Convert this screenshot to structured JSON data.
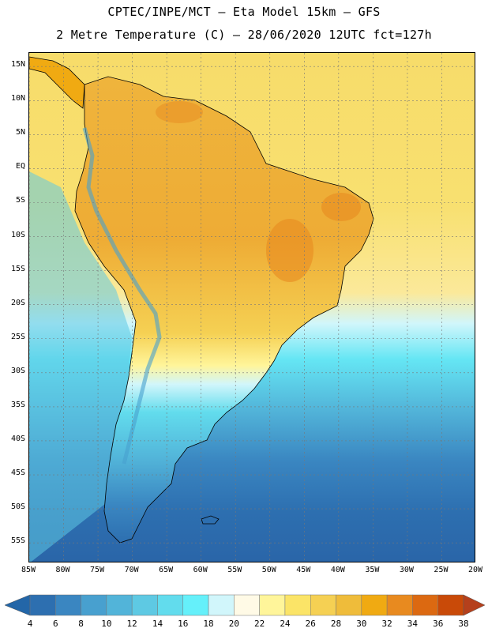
{
  "header": {
    "line1": "CPTEC/INPE/MCT –  Eta Model 15km – GFS",
    "line2": "2 Metre Temperature (C) – 28/06/2020 12UTC fct=127h"
  },
  "axes": {
    "lat_labels": [
      "15N",
      "10N",
      "5N",
      "EQ",
      "5S",
      "10S",
      "15S",
      "20S",
      "25S",
      "30S",
      "35S",
      "40S",
      "45S",
      "50S",
      "55S"
    ],
    "lat_values": [
      15,
      10,
      5,
      0,
      -5,
      -10,
      -15,
      -20,
      -25,
      -30,
      -35,
      -40,
      -45,
      -50,
      -55
    ],
    "lon_labels": [
      "85W",
      "80W",
      "75W",
      "70W",
      "65W",
      "60W",
      "55W",
      "50W",
      "45W",
      "40W",
      "35W",
      "30W",
      "25W",
      "20W"
    ],
    "lon_values": [
      -85,
      -80,
      -75,
      -70,
      -65,
      -60,
      -55,
      -50,
      -45,
      -40,
      -35,
      -30,
      -25,
      -20
    ],
    "lon_range": [
      -85,
      -20
    ],
    "lat_range": [
      -58,
      17
    ]
  },
  "colorbar": {
    "levels": [
      "4",
      "6",
      "8",
      "10",
      "12",
      "14",
      "16",
      "18",
      "20",
      "22",
      "24",
      "26",
      "28",
      "30",
      "32",
      "34",
      "36",
      "38"
    ],
    "colors": [
      "#2d6fb0",
      "#3a86c1",
      "#48a0cf",
      "#52b4d9",
      "#5ec9e3",
      "#62dced",
      "#65f0fa",
      "#d1f6fb",
      "#fffae6",
      "#fff59a",
      "#fbe467",
      "#f5d053",
      "#efbc3a",
      "#f0aa12",
      "#e88a1f",
      "#dc6911",
      "#c94a08"
    ],
    "under_color": "#2366a8",
    "over_color": "#b5401c"
  },
  "colors": {
    "ocean_warm": "#f7db66",
    "ocean_mid": "#52b4d9",
    "ocean_cold": "#2d6fb0",
    "land_hot": "#efa93a",
    "boundary": "#000000",
    "grid": "#888888"
  }
}
